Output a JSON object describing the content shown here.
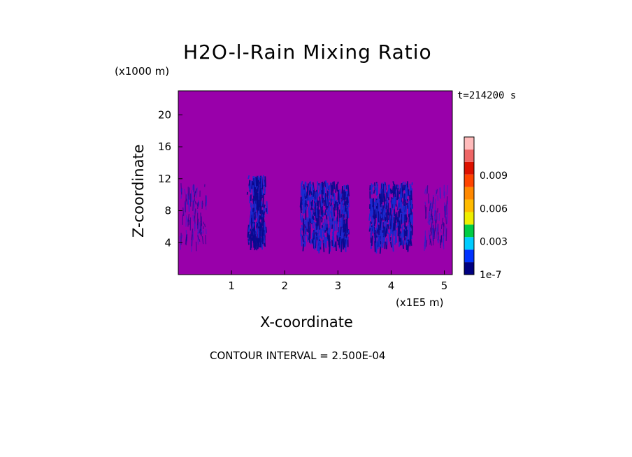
{
  "chart_data": {
    "type": "heatmap",
    "title": "H2O-l-Rain Mixing Ratio",
    "xlabel": "X-coordinate",
    "ylabel": "Z-coordinate",
    "x_multiplier": "(x1E5 m)",
    "y_multiplier": "(x1000 m)",
    "time_label": "t=214200 s",
    "xlim": [
      0,
      5.15
    ],
    "ylim": [
      0,
      23
    ],
    "x_ticks": [
      1,
      2,
      3,
      4,
      5
    ],
    "y_ticks": [
      4,
      8,
      12,
      16,
      20
    ],
    "background_color": "#9900aa",
    "rain_color": "#1a2ad0",
    "dense_color": "#0a0a8e",
    "rain_columns": [
      {
        "x_center": 0.28,
        "x_half_width": 0.25,
        "top": 11.5,
        "density": "sparse"
      },
      {
        "x_center": 1.48,
        "x_half_width": 0.2,
        "top": 12.5,
        "density": "dense"
      },
      {
        "x_center": 2.75,
        "x_half_width": 0.45,
        "top": 11.8,
        "density": "medium"
      },
      {
        "x_center": 4.0,
        "x_half_width": 0.4,
        "top": 11.7,
        "density": "medium"
      },
      {
        "x_center": 4.85,
        "x_half_width": 0.22,
        "top": 11.3,
        "density": "sparse"
      }
    ],
    "colorbar": {
      "colors": [
        "#000080",
        "#0033ff",
        "#00ccff",
        "#00cc44",
        "#eeee00",
        "#ffbb00",
        "#ff8800",
        "#ff4400",
        "#dd1100",
        "#ee6666",
        "#ffbbbb"
      ],
      "labels": [
        "1e-7",
        "0.003",
        "0.006",
        "0.009"
      ],
      "label_values": [
        1e-07,
        0.003,
        0.006,
        0.009
      ],
      "max": 0.0125
    },
    "contour_interval": "CONTOUR INTERVAL = 2.500E-04"
  }
}
